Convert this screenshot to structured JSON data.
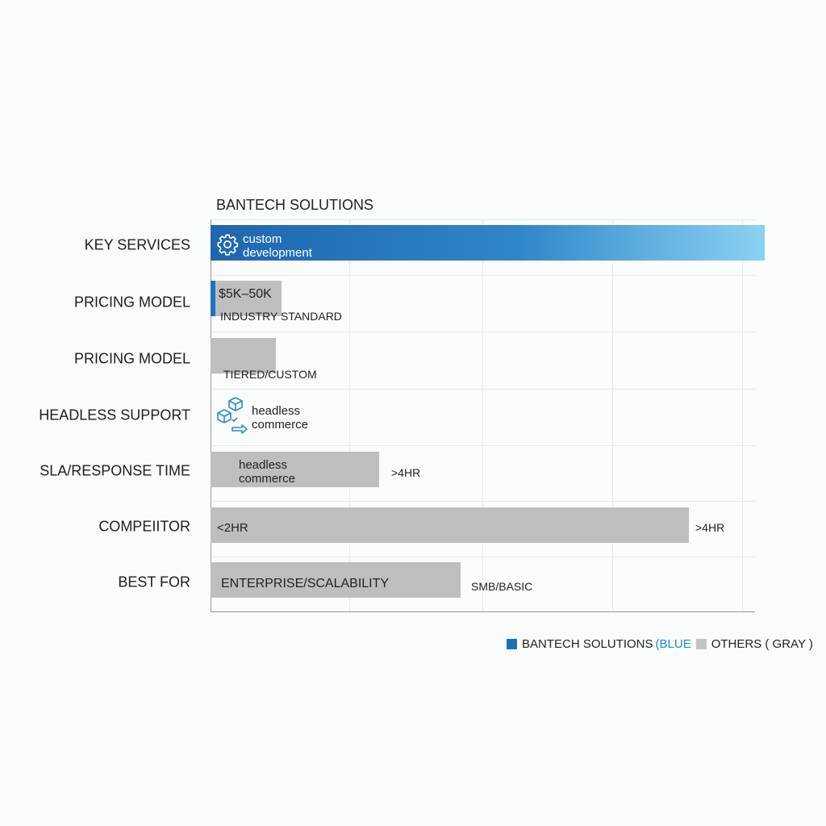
{
  "chart_data": {
    "type": "bar",
    "orientation": "horizontal",
    "title": "BANTECH SOLUTIONS",
    "categories": [
      "KEY SERVICES",
      "PRICING MODEL",
      "PRICING MODEL",
      "HEADLESS SUPPORT",
      "SLA/RESPONSE TIME",
      "COMPEIITOR",
      "BEST FOR"
    ],
    "value_unit": "percent of plot width (no axis printed)",
    "values": [
      102,
      13,
      12,
      0,
      31,
      88,
      46
    ],
    "bar_series": [
      "blue",
      "gray",
      "gray",
      "none",
      "gray",
      "gray",
      "gray"
    ],
    "inner_labels": [
      "custom development",
      "$5K–50K",
      "",
      "headless commerce",
      "headless commerce",
      "<2HR",
      "ENTERPRISE/SCALABILITY"
    ],
    "outer_labels": [
      "",
      "INDUSTRY STANDARD",
      "TIERED/CUSTOM",
      "",
      ">4HR",
      ">4HR",
      "SMB/BASIC"
    ],
    "icons": {
      "row0": "gear-icon",
      "row3": "boxes-arrow-icon"
    },
    "grid": true,
    "legend": {
      "position": "bottom-right",
      "items": [
        {
          "label": "BANTECH SOLUTIONS",
          "suffix": "(BLUE",
          "color": "#1f6fb8"
        },
        {
          "label": "OTHERS ( GRAY )",
          "color": "#c4c4c4"
        }
      ]
    },
    "colors": {
      "blue": "#1f66ae",
      "blue_end": "#8ad2f2",
      "gray": "#bdbebf",
      "legend_blue_text": "#1a8ad4"
    }
  }
}
